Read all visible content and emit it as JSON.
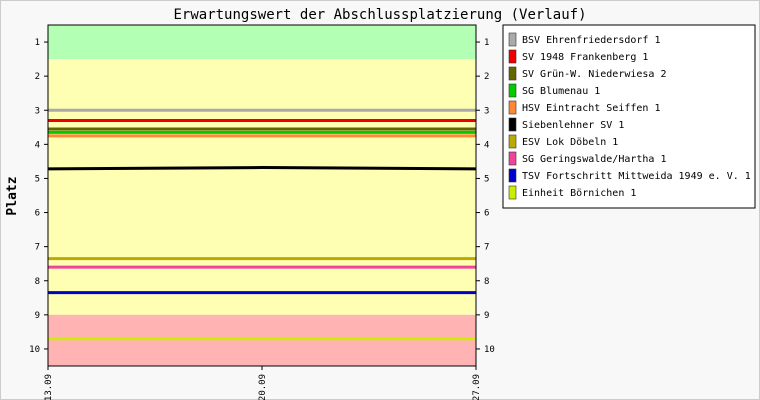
{
  "chart_data": {
    "type": "line",
    "title": "Erwartungswert der Abschlussplatzierung (Verlauf)",
    "ylabel": "Platz",
    "xlabel": "",
    "ylim": [
      0.5,
      10.5
    ],
    "y_inverted": true,
    "yticks": [
      "1",
      "2",
      "3",
      "4",
      "5",
      "6",
      "7",
      "8",
      "9",
      "10"
    ],
    "x": [
      "13.09",
      "20.09",
      "27.09"
    ],
    "background_bands": [
      {
        "from": 0.5,
        "to": 1.5,
        "color": "#b3ffb3"
      },
      {
        "from": 1.5,
        "to": 9.0,
        "color": "#ffffb3"
      },
      {
        "from": 9.0,
        "to": 10.5,
        "color": "#ffb3b3"
      }
    ],
    "legend_position": "right",
    "series": [
      {
        "name": "BSV Ehrenfriedersdorf 1",
        "color": "#aaaaaa",
        "values": [
          3.0,
          3.0,
          3.0
        ]
      },
      {
        "name": "SV 1948 Frankenberg 1",
        "color": "#ee0000",
        "values": [
          3.3,
          3.3,
          3.3
        ]
      },
      {
        "name": "SV Grün-W. Niederwiesa 2",
        "color": "#666600",
        "values": [
          3.55,
          3.55,
          3.55
        ]
      },
      {
        "name": "SG Blumenau 1",
        "color": "#00cc00",
        "values": [
          3.65,
          3.65,
          3.65
        ]
      },
      {
        "name": "HSV Eintracht Seiffen 1",
        "color": "#ff8833",
        "values": [
          3.75,
          3.75,
          3.75
        ]
      },
      {
        "name": "Siebenlehner SV 1",
        "color": "#000000",
        "values": [
          4.72,
          4.68,
          4.72
        ]
      },
      {
        "name": "ESV Lok Döbeln 1",
        "color": "#bbaa00",
        "values": [
          7.35,
          7.35,
          7.35
        ]
      },
      {
        "name": "SG Geringswalde/Hartha 1",
        "color": "#ee4499",
        "values": [
          7.6,
          7.6,
          7.6
        ]
      },
      {
        "name": "TSV Fortschritt Mittweida 1949 e. V. 1",
        "color": "#0000cc",
        "values": [
          8.35,
          8.35,
          8.35
        ]
      },
      {
        "name": "Einheit Börnichen 1",
        "color": "#ccee00",
        "values": [
          9.7,
          9.7,
          9.7
        ]
      }
    ]
  }
}
